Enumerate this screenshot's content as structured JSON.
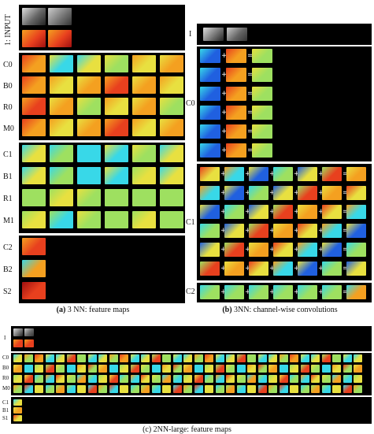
{
  "figure_a": {
    "caption_tag": "(a)",
    "caption_text": "3 NN: feature maps",
    "input_label": "1: INPUT",
    "rows": [
      "C0",
      "B0",
      "R0",
      "M0",
      "C1",
      "B1",
      "R1",
      "M1",
      "C2",
      "B2",
      "S2"
    ]
  },
  "figure_b": {
    "caption_tag": "(b)",
    "caption_text": "3NN: channel-wise convolutions",
    "input_label": "I",
    "rows": [
      "C0",
      "C1",
      "C2"
    ],
    "operators": {
      "plus": "+",
      "equals": "="
    }
  },
  "figure_c": {
    "caption_text": "(c) 2NN-large: feature maps",
    "input_label": "I",
    "rows": [
      "C0",
      "B0",
      "R0",
      "M0",
      "C1",
      "B1",
      "S1"
    ]
  },
  "colors": {
    "background": "#000000",
    "red": "#e8401e",
    "orange": "#f4a020",
    "yellow": "#e8e040",
    "green": "#9ee060",
    "cyan": "#38d8e8",
    "blue": "#2060e0",
    "darkred": "#a01010",
    "gray": "#b0b0b0"
  }
}
